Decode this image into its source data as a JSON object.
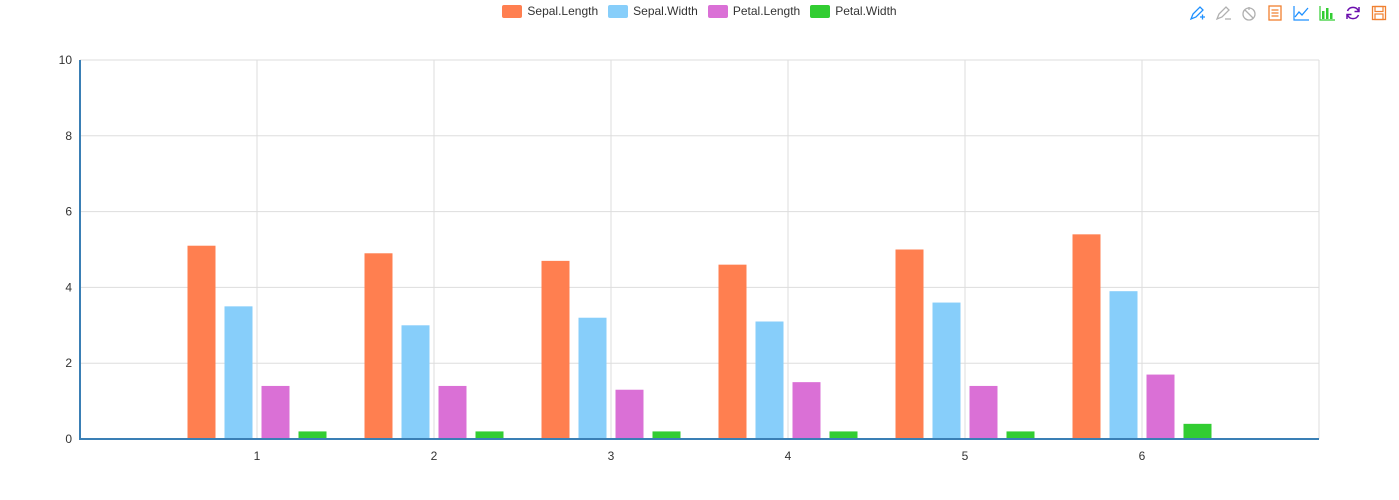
{
  "chart_data": {
    "type": "bar",
    "categories": [
      "1",
      "2",
      "3",
      "4",
      "5",
      "6"
    ],
    "series": [
      {
        "name": "Sepal.Length",
        "color": "#ff7f50",
        "values": [
          5.1,
          4.9,
          4.7,
          4.6,
          5.0,
          5.4
        ]
      },
      {
        "name": "Sepal.Width",
        "color": "#87cefa",
        "values": [
          3.5,
          3.0,
          3.2,
          3.1,
          3.6,
          3.9
        ]
      },
      {
        "name": "Petal.Length",
        "color": "#da70d6",
        "values": [
          1.4,
          1.4,
          1.3,
          1.5,
          1.4,
          1.7
        ]
      },
      {
        "name": "Petal.Width",
        "color": "#32cd32",
        "values": [
          0.2,
          0.2,
          0.2,
          0.2,
          0.2,
          0.4
        ]
      }
    ],
    "ylim": [
      0,
      10
    ],
    "yticks": [
      "0",
      "2",
      "4",
      "6",
      "8",
      "10"
    ],
    "grid": true,
    "legend_position": "top-center"
  },
  "toolbox": {
    "icons": [
      {
        "name": "mark-icon",
        "color": "#1e90ff"
      },
      {
        "name": "mark-undo-icon",
        "color": "#b0b0b0"
      },
      {
        "name": "mark-clear-icon",
        "color": "#b0b0b0"
      },
      {
        "name": "data-view-icon",
        "color": "#f08030"
      },
      {
        "name": "line-chart-icon",
        "color": "#1e90ff"
      },
      {
        "name": "bar-chart-icon",
        "color": "#32cd32"
      },
      {
        "name": "restore-icon",
        "color": "#6a0dad"
      },
      {
        "name": "save-image-icon",
        "color": "#f08030"
      }
    ]
  }
}
